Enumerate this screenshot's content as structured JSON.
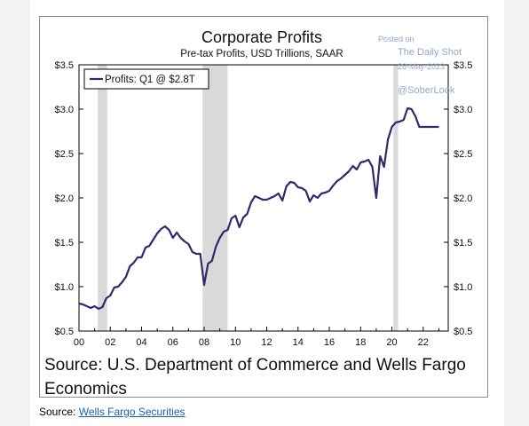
{
  "chart_data": {
    "type": "line",
    "title": "Corporate Profits",
    "subtitle": "Pre-tax Profits, USD Trillions, SAAR",
    "xlabel": "",
    "ylabel": "",
    "xlim": [
      2000,
      2023.6
    ],
    "ylim": [
      0.5,
      3.5
    ],
    "grid": false,
    "legend_position": "top-left",
    "x_tick_labels": [
      "00",
      "02",
      "04",
      "06",
      "08",
      "10",
      "12",
      "14",
      "16",
      "18",
      "20",
      "22"
    ],
    "y_tick_labels": [
      "$0.5",
      "$1.0",
      "$1.5",
      "$2.0",
      "$2.5",
      "$3.0",
      "$3.5"
    ],
    "recession_shading": [
      [
        2001.2,
        2001.8
      ],
      [
        2007.9,
        2009.5
      ],
      [
        2020.1,
        2020.4
      ]
    ],
    "series": [
      {
        "name": "Profits: Q1 @ $2.8T",
        "color": "#2e2a6e",
        "x": [
          2000.0,
          2000.25,
          2000.5,
          2000.75,
          2001.0,
          2001.25,
          2001.5,
          2001.75,
          2002.0,
          2002.25,
          2002.5,
          2002.75,
          2003.0,
          2003.25,
          2003.5,
          2003.75,
          2004.0,
          2004.25,
          2004.5,
          2004.75,
          2005.0,
          2005.25,
          2005.5,
          2005.75,
          2006.0,
          2006.25,
          2006.5,
          2006.75,
          2007.0,
          2007.25,
          2007.5,
          2007.75,
          2008.0,
          2008.25,
          2008.5,
          2008.75,
          2009.0,
          2009.25,
          2009.5,
          2009.75,
          2010.0,
          2010.25,
          2010.5,
          2010.75,
          2011.0,
          2011.25,
          2011.5,
          2011.75,
          2012.0,
          2012.25,
          2012.5,
          2012.75,
          2013.0,
          2013.25,
          2013.5,
          2013.75,
          2014.0,
          2014.25,
          2014.5,
          2014.75,
          2015.0,
          2015.25,
          2015.5,
          2015.75,
          2016.0,
          2016.25,
          2016.5,
          2016.75,
          2017.0,
          2017.25,
          2017.5,
          2017.75,
          2018.0,
          2018.25,
          2018.5,
          2018.75,
          2019.0,
          2019.25,
          2019.5,
          2019.75,
          2020.0,
          2020.25,
          2020.5,
          2020.75,
          2021.0,
          2021.25,
          2021.5,
          2021.75,
          2022.0,
          2022.25,
          2022.5,
          2022.75,
          2023.0
        ],
        "y": [
          0.81,
          0.8,
          0.78,
          0.76,
          0.78,
          0.75,
          0.77,
          0.87,
          0.9,
          0.99,
          1.0,
          1.05,
          1.11,
          1.23,
          1.27,
          1.33,
          1.33,
          1.44,
          1.46,
          1.53,
          1.6,
          1.65,
          1.68,
          1.64,
          1.55,
          1.61,
          1.55,
          1.51,
          1.48,
          1.39,
          1.37,
          1.37,
          1.02,
          1.26,
          1.29,
          1.45,
          1.55,
          1.62,
          1.64,
          1.77,
          1.8,
          1.67,
          1.78,
          1.82,
          1.95,
          2.02,
          2.0,
          1.98,
          1.98,
          2.0,
          2.02,
          2.05,
          1.97,
          2.13,
          2.18,
          2.17,
          2.12,
          2.11,
          2.08,
          1.96,
          2.03,
          2.0,
          2.05,
          2.06,
          2.08,
          2.14,
          2.19,
          2.22,
          2.26,
          2.3,
          2.36,
          2.32,
          2.4,
          2.41,
          2.43,
          2.35,
          2.0,
          2.47,
          2.35,
          2.66,
          2.8,
          2.85,
          2.86,
          2.88,
          3.01,
          3.0,
          2.92,
          2.8,
          2.8,
          2.8,
          2.8,
          2.8,
          2.8
        ]
      }
    ]
  },
  "source_note": "Source: U.S. Department of Commerce and Wells Fargo Economics",
  "watermark": {
    "posted_on": "Posted on",
    "site": "The Daily Shot",
    "date": "28-May-2023",
    "handle": "@SoberLook"
  },
  "footer": {
    "prefix": "Source: ",
    "link_text": "Wells Fargo Securities"
  }
}
